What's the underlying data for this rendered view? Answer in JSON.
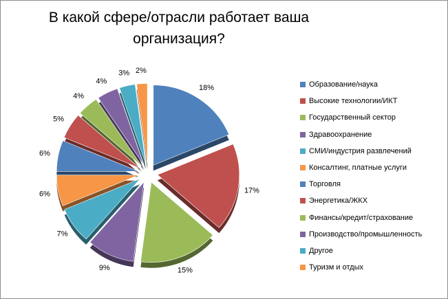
{
  "chart_data": {
    "type": "pie",
    "title_line1": "В какой сфере/отрасли работает ваша",
    "title_line2": "организация?",
    "legend_position": "right",
    "slices": [
      {
        "label": "Образование/наука",
        "value": 18,
        "display": "18%",
        "color": "#4F81BD"
      },
      {
        "label": "Высокие технологии/ИКТ",
        "value": 17,
        "display": "17%",
        "color": "#C0504D"
      },
      {
        "label": "Государственный сектор",
        "value": 15,
        "display": "15%",
        "color": "#9BBB59"
      },
      {
        "label": "Здравоохранение",
        "value": 9,
        "display": "9%",
        "color": "#8064A2"
      },
      {
        "label": "СМИ/индустрия  развлечений",
        "value": 7,
        "display": "7%",
        "color": "#4BACC6"
      },
      {
        "label": "Консалтинг, платные услуги",
        "value": 6,
        "display": "6%",
        "color": "#F79646"
      },
      {
        "label": "Торговля",
        "value": 6,
        "display": "6%",
        "color": "#4F81BD"
      },
      {
        "label": "Энергетика/ЖКХ",
        "value": 5,
        "display": "5%",
        "color": "#C0504D"
      },
      {
        "label": "Финансы/кредит/страхование",
        "value": 4,
        "display": "4%",
        "color": "#9BBB59"
      },
      {
        "label": "Производство/промышленность",
        "value": 4,
        "display": "4%",
        "color": "#8064A2"
      },
      {
        "label": "Другое",
        "value": 3,
        "display": "3%",
        "color": "#4BACC6"
      },
      {
        "label": "Туризм и отдых",
        "value": 2,
        "display": "2%",
        "color": "#F79646"
      }
    ]
  }
}
